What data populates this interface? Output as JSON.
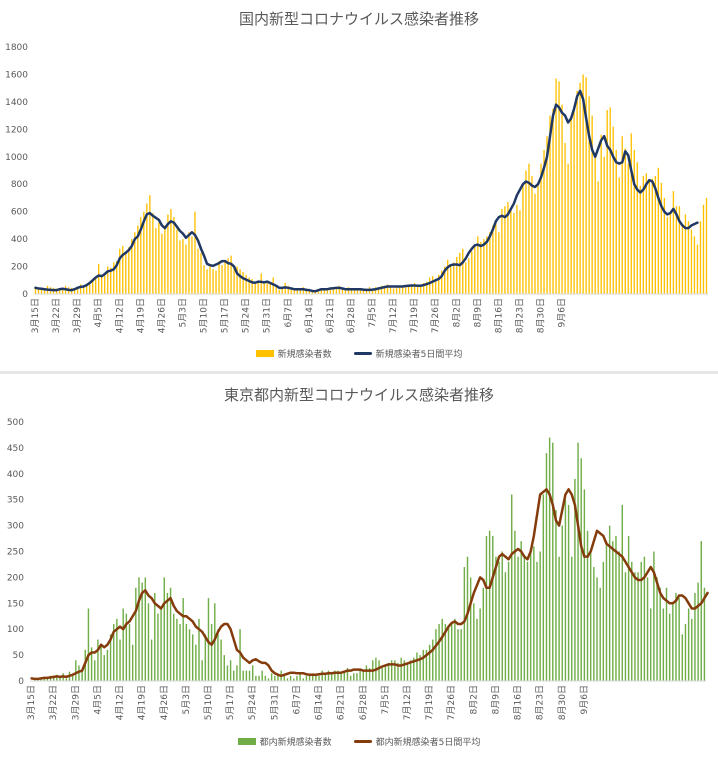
{
  "chart_data": [
    {
      "type": "bar",
      "title": "国内新型コロナウイルス感染者推移",
      "xlabel": "",
      "ylabel": "",
      "ylim": [
        0,
        1800
      ],
      "yticks": [
        0,
        200,
        400,
        600,
        800,
        1000,
        1200,
        1400,
        1600,
        1800
      ],
      "x_tick_labels": [
        "3月15日",
        "3月22日",
        "3月29日",
        "4月5日",
        "4月12日",
        "4月19日",
        "4月26日",
        "5月3日",
        "5月10日",
        "5月17日",
        "5月24日",
        "5月31日",
        "6月7日",
        "6月14日",
        "6月21日",
        "6月28日",
        "7月5日",
        "7月12日",
        "7月19日",
        "7月26日",
        "8月2日",
        "8月9日",
        "8月16日",
        "8月23日",
        "8月30日",
        "9月6日"
      ],
      "bar_color": "#ffc000",
      "line_color": "#203864",
      "legend_placement": "bottom",
      "grid": false,
      "series": [
        {
          "name": "新規感染者数",
          "values": [
            55,
            45,
            40,
            30,
            60,
            50,
            45,
            40,
            35,
            35,
            60,
            50,
            45,
            40,
            55,
            70,
            60,
            65,
            90,
            110,
            120,
            220,
            130,
            140,
            200,
            190,
            230,
            240,
            330,
            350,
            300,
            340,
            400,
            450,
            500,
            560,
            600,
            660,
            720,
            590,
            480,
            520,
            440,
            500,
            580,
            620,
            560,
            470,
            390,
            400,
            360,
            450,
            420,
            600,
            330,
            300,
            210,
            180,
            200,
            180,
            170,
            240,
            210,
            240,
            260,
            280,
            210,
            200,
            180,
            160,
            140,
            120,
            110,
            90,
            80,
            150,
            90,
            80,
            80,
            120,
            60,
            30,
            40,
            80,
            60,
            30,
            40,
            30,
            30,
            50,
            40,
            30,
            30,
            20,
            20,
            30,
            40,
            30,
            30,
            40,
            50,
            60,
            40,
            40,
            50,
            40,
            40,
            40,
            30,
            30,
            40,
            50,
            40,
            50,
            50,
            60,
            60,
            70,
            50,
            40,
            50,
            60,
            60,
            50,
            60,
            70,
            80,
            60,
            70,
            80,
            90,
            120,
            130,
            110,
            140,
            170,
            200,
            250,
            210,
            230,
            270,
            300,
            330,
            230,
            260,
            310,
            350,
            420,
            380,
            400,
            420,
            450,
            500,
            540,
            450,
            620,
            640,
            670,
            610,
            590,
            650,
            610,
            800,
            900,
            950,
            860,
            730,
            800,
            950,
            1050,
            1150,
            1300,
            1350,
            1570,
            1550,
            1380,
            1100,
            950,
            1280,
            1360,
            1480,
            1540,
            1600,
            1580,
            1440,
            1300,
            1000,
            820,
            1160,
            1000,
            1340,
            1360,
            1220,
            1050,
            850,
            1150,
            1060,
            950,
            1170,
            1050,
            960,
            790,
            860,
            880,
            820,
            840,
            860,
            920,
            810,
            700,
            560,
            600,
            750,
            640,
            640,
            510,
            580,
            530,
            470,
            420,
            360,
            530,
            650,
            700
          ]
        },
        {
          "name": "新規感染者5日間平均",
          "values": [
            45,
            40,
            38,
            35,
            32,
            30,
            28,
            28,
            35,
            38,
            35,
            30,
            28,
            35,
            45,
            52,
            55,
            65,
            80,
            100,
            120,
            135,
            130,
            145,
            165,
            170,
            180,
            210,
            260,
            285,
            300,
            320,
            350,
            400,
            420,
            470,
            530,
            580,
            590,
            570,
            555,
            540,
            500,
            480,
            510,
            530,
            520,
            490,
            460,
            440,
            410,
            430,
            450,
            430,
            390,
            330,
            280,
            220,
            210,
            205,
            215,
            225,
            240,
            240,
            225,
            220,
            200,
            150,
            130,
            115,
            105,
            95,
            85,
            82,
            90,
            88,
            85,
            90,
            80,
            70,
            60,
            45,
            45,
            48,
            45,
            40,
            35,
            35,
            35,
            35,
            30,
            28,
            22,
            20,
            28,
            35,
            35,
            35,
            40,
            42,
            45,
            45,
            40,
            35,
            35,
            35,
            35,
            35,
            35,
            32,
            30,
            30,
            32,
            35,
            40,
            45,
            50,
            55,
            55,
            55,
            55,
            55,
            55,
            58,
            60,
            62,
            62,
            60,
            60,
            65,
            72,
            80,
            90,
            100,
            110,
            130,
            170,
            195,
            210,
            215,
            215,
            210,
            230,
            260,
            300,
            330,
            355,
            360,
            350,
            360,
            380,
            420,
            470,
            530,
            560,
            570,
            560,
            580,
            620,
            660,
            720,
            760,
            800,
            820,
            810,
            790,
            780,
            800,
            850,
            920,
            1000,
            1150,
            1300,
            1380,
            1360,
            1320,
            1300,
            1250,
            1280,
            1350,
            1440,
            1480,
            1420,
            1280,
            1150,
            1050,
            1000,
            1060,
            1120,
            1150,
            1080,
            1050,
            1000,
            960,
            950,
            960,
            1040,
            1010,
            900,
            800,
            760,
            740,
            760,
            800,
            830,
            820,
            770,
            700,
            640,
            600,
            580,
            590,
            620,
            580,
            530,
            500,
            480,
            480,
            500,
            510,
            520
          ]
        }
      ]
    },
    {
      "type": "bar",
      "title": "東京都内新型コロナウイルス感染者推移",
      "xlabel": "",
      "ylabel": "",
      "ylim": [
        0,
        500
      ],
      "yticks": [
        0,
        50,
        100,
        150,
        200,
        250,
        300,
        350,
        400,
        450,
        500
      ],
      "x_tick_labels": [
        "3月15日",
        "3月22日",
        "3月29日",
        "4月5日",
        "4月12日",
        "4月19日",
        "4月26日",
        "5月3日",
        "5月10日",
        "5月17日",
        "5月24日",
        "5月31日",
        "6月7日",
        "6月14日",
        "6月21日",
        "6月28日",
        "7月5日",
        "7月12日",
        "7月19日",
        "7月26日",
        "8月2日",
        "8月9日",
        "8月16日",
        "8月23日",
        "8月30日",
        "9月6日"
      ],
      "bar_color": "#70ad47",
      "line_color": "#843c0c",
      "legend_placement": "bottom",
      "grid": false,
      "series": [
        {
          "name": "都内新規感染者数",
          "values": [
            0,
            2,
            3,
            5,
            7,
            8,
            10,
            10,
            12,
            8,
            15,
            5,
            18,
            10,
            40,
            30,
            20,
            60,
            140,
            65,
            40,
            80,
            70,
            50,
            60,
            90,
            110,
            120,
            80,
            140,
            130,
            110,
            70,
            180,
            200,
            190,
            200,
            150,
            80,
            170,
            130,
            140,
            200,
            170,
            180,
            130,
            120,
            110,
            160,
            110,
            100,
            90,
            70,
            120,
            40,
            90,
            160,
            110,
            150,
            100,
            80,
            50,
            30,
            40,
            20,
            30,
            100,
            20,
            20,
            20,
            30,
            10,
            10,
            20,
            10,
            5,
            15,
            10,
            10,
            20,
            10,
            5,
            10,
            5,
            10,
            15,
            5,
            10,
            10,
            15,
            10,
            10,
            20,
            15,
            20,
            15,
            20,
            20,
            15,
            20,
            25,
            10,
            15,
            15,
            20,
            20,
            30,
            25,
            40,
            45,
            40,
            25,
            30,
            35,
            40,
            40,
            35,
            45,
            40,
            35,
            40,
            45,
            55,
            50,
            60,
            60,
            70,
            80,
            100,
            110,
            120,
            110,
            105,
            110,
            120,
            100,
            100,
            220,
            240,
            200,
            150,
            120,
            140,
            180,
            280,
            290,
            280,
            240,
            230,
            250,
            210,
            230,
            360,
            290,
            240,
            270,
            240,
            230,
            250,
            260,
            230,
            250,
            360,
            440,
            470,
            460,
            330,
            240,
            300,
            350,
            340,
            240,
            390,
            460,
            430,
            370,
            290,
            250,
            220,
            200,
            180,
            230,
            270,
            300,
            270,
            280,
            250,
            340,
            210,
            280,
            230,
            210,
            210,
            230,
            240,
            200,
            140,
            250,
            200,
            180,
            140,
            180,
            130,
            150,
            170,
            160,
            90,
            110,
            140,
            120,
            170,
            190,
            270,
            180
          ]
        },
        {
          "name": "都内新規感染者5日間平均",
          "values": [
            5,
            4,
            4,
            5,
            6,
            6,
            7,
            8,
            9,
            8,
            9,
            8,
            10,
            12,
            15,
            18,
            20,
            35,
            50,
            55,
            55,
            60,
            70,
            65,
            70,
            80,
            95,
            100,
            105,
            100,
            110,
            115,
            125,
            135,
            155,
            170,
            175,
            165,
            160,
            150,
            145,
            140,
            150,
            155,
            160,
            145,
            135,
            130,
            125,
            125,
            120,
            115,
            105,
            100,
            95,
            85,
            75,
            70,
            80,
            95,
            105,
            110,
            110,
            100,
            80,
            60,
            55,
            45,
            40,
            35,
            40,
            42,
            38,
            35,
            35,
            30,
            20,
            15,
            12,
            10,
            12,
            14,
            16,
            16,
            15,
            15,
            15,
            13,
            12,
            12,
            12,
            13,
            14,
            14,
            15,
            15,
            16,
            16,
            16,
            18,
            20,
            20,
            22,
            22,
            22,
            20,
            20,
            20,
            20,
            22,
            25,
            28,
            30,
            32,
            32,
            32,
            30,
            30,
            32,
            34,
            36,
            38,
            40,
            42,
            45,
            50,
            55,
            60,
            68,
            76,
            85,
            95,
            105,
            112,
            115,
            110,
            110,
            115,
            130,
            150,
            170,
            185,
            200,
            195,
            180,
            180,
            200,
            220,
            240,
            245,
            240,
            235,
            245,
            250,
            255,
            250,
            240,
            235,
            250,
            280,
            320,
            360,
            365,
            370,
            360,
            340,
            310,
            300,
            330,
            360,
            370,
            360,
            340,
            300,
            260,
            240,
            240,
            250,
            270,
            290,
            285,
            280,
            265,
            260,
            255,
            250,
            245,
            240,
            230,
            220,
            210,
            200,
            195,
            195,
            200,
            210,
            220,
            210,
            190,
            170,
            160,
            155,
            150,
            150,
            155,
            165,
            165,
            160,
            150,
            140,
            140,
            145,
            150,
            160,
            170
          ]
        }
      ]
    }
  ]
}
